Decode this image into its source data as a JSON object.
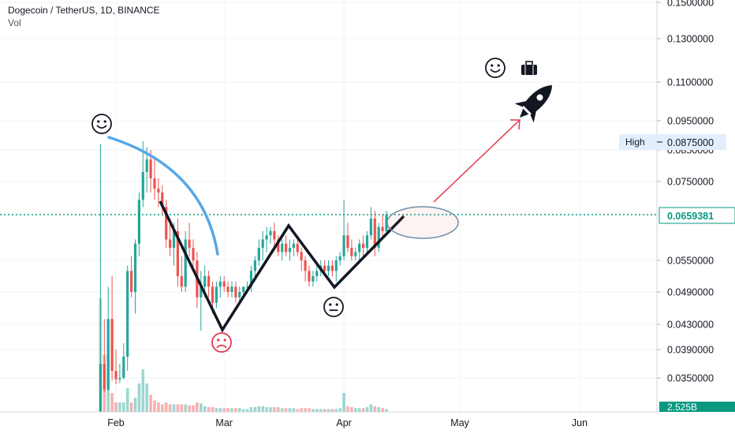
{
  "header": {
    "title": "Dogecoin / TetherUS, 1D, BINANCE",
    "volume_label": "Vol"
  },
  "chart_data": {
    "type": "candlestick",
    "y_ticks": [
      "0.1500000",
      "0.1300000",
      "0.1100000",
      "0.0950000",
      "0.0850000",
      "0.0750000",
      "0.0550000",
      "0.0490000",
      "0.0430000",
      "0.0390000",
      "0.0350000"
    ],
    "x_ticks": [
      "Feb",
      "Mar",
      "Apr",
      "May",
      "Jun"
    ],
    "high_label": "High",
    "high_value": "0.0875000",
    "last_price": "0.0659381",
    "volume_value": "2.525B",
    "colors": {
      "up": "#26a69a",
      "down": "#ef5350",
      "last_price": "#089981",
      "arc": "#56a7e6",
      "zigzag": "#131722",
      "arrow": "#e5364d",
      "ellipse": "#6e8fa8"
    },
    "annotations": [
      "smile-emoji",
      "frown-emoji",
      "neutral-emoji",
      "smile-emoji",
      "briefcase-icon",
      "rocket-icon"
    ],
    "candles": [
      {
        "date": "Jan 28",
        "o": 0.0085,
        "h": 0.087,
        "l": 0.0083,
        "c": 0.037,
        "v": 1.2
      },
      {
        "date": "Jan 29",
        "o": 0.037,
        "h": 0.044,
        "l": 0.024,
        "c": 0.026,
        "v": 0.6
      },
      {
        "date": "Jan 30",
        "o": 0.026,
        "h": 0.05,
        "l": 0.025,
        "c": 0.044,
        "v": 0.6
      },
      {
        "date": "Jan 31",
        "o": 0.044,
        "h": 0.052,
        "l": 0.033,
        "c": 0.036,
        "v": 0.2
      },
      {
        "date": "Feb 1",
        "o": 0.036,
        "h": 0.039,
        "l": 0.03,
        "c": 0.034,
        "v": 0.1
      },
      {
        "date": "Feb 2",
        "o": 0.034,
        "h": 0.037,
        "l": 0.031,
        "c": 0.035,
        "v": 0.1
      },
      {
        "date": "Feb 3",
        "o": 0.035,
        "h": 0.04,
        "l": 0.034,
        "c": 0.038,
        "v": 0.1
      },
      {
        "date": "Feb 4",
        "o": 0.038,
        "h": 0.054,
        "l": 0.036,
        "c": 0.053,
        "v": 0.25
      },
      {
        "date": "Feb 5",
        "o": 0.053,
        "h": 0.056,
        "l": 0.048,
        "c": 0.049,
        "v": 0.1
      },
      {
        "date": "Feb 6",
        "o": 0.049,
        "h": 0.06,
        "l": 0.045,
        "c": 0.059,
        "v": 0.15
      },
      {
        "date": "Feb 7",
        "o": 0.059,
        "h": 0.072,
        "l": 0.056,
        "c": 0.07,
        "v": 0.3
      },
      {
        "date": "Feb 8",
        "o": 0.07,
        "h": 0.088,
        "l": 0.068,
        "c": 0.078,
        "v": 0.45
      },
      {
        "date": "Feb 9",
        "o": 0.078,
        "h": 0.086,
        "l": 0.072,
        "c": 0.082,
        "v": 0.3
      },
      {
        "date": "Feb 10",
        "o": 0.082,
        "h": 0.085,
        "l": 0.072,
        "c": 0.076,
        "v": 0.18
      },
      {
        "date": "Feb 11",
        "o": 0.076,
        "h": 0.082,
        "l": 0.07,
        "c": 0.073,
        "v": 0.12
      },
      {
        "date": "Feb 12",
        "o": 0.073,
        "h": 0.076,
        "l": 0.068,
        "c": 0.072,
        "v": 0.1
      },
      {
        "date": "Feb 13",
        "o": 0.072,
        "h": 0.074,
        "l": 0.066,
        "c": 0.068,
        "v": 0.08
      },
      {
        "date": "Feb 14",
        "o": 0.068,
        "h": 0.07,
        "l": 0.058,
        "c": 0.06,
        "v": 0.1
      },
      {
        "date": "Feb 15",
        "o": 0.06,
        "h": 0.065,
        "l": 0.056,
        "c": 0.058,
        "v": 0.08
      },
      {
        "date": "Feb 16",
        "o": 0.058,
        "h": 0.064,
        "l": 0.054,
        "c": 0.062,
        "v": 0.08
      },
      {
        "date": "Feb 17",
        "o": 0.062,
        "h": 0.065,
        "l": 0.05,
        "c": 0.052,
        "v": 0.08
      },
      {
        "date": "Feb 18",
        "o": 0.052,
        "h": 0.056,
        "l": 0.049,
        "c": 0.05,
        "v": 0.08
      },
      {
        "date": "Feb 19",
        "o": 0.05,
        "h": 0.062,
        "l": 0.049,
        "c": 0.06,
        "v": 0.08
      },
      {
        "date": "Feb 20",
        "o": 0.06,
        "h": 0.064,
        "l": 0.056,
        "c": 0.058,
        "v": 0.07
      },
      {
        "date": "Feb 21",
        "o": 0.058,
        "h": 0.06,
        "l": 0.053,
        "c": 0.055,
        "v": 0.07
      },
      {
        "date": "Feb 22",
        "o": 0.055,
        "h": 0.057,
        "l": 0.046,
        "c": 0.048,
        "v": 0.1
      },
      {
        "date": "Feb 23",
        "o": 0.048,
        "h": 0.053,
        "l": 0.042,
        "c": 0.05,
        "v": 0.09
      },
      {
        "date": "Feb 24",
        "o": 0.05,
        "h": 0.054,
        "l": 0.048,
        "c": 0.052,
        "v": 0.06
      },
      {
        "date": "Feb 25",
        "o": 0.052,
        "h": 0.053,
        "l": 0.048,
        "c": 0.05,
        "v": 0.05
      },
      {
        "date": "Feb 26",
        "o": 0.05,
        "h": 0.051,
        "l": 0.045,
        "c": 0.047,
        "v": 0.05
      },
      {
        "date": "Feb 27",
        "o": 0.047,
        "h": 0.051,
        "l": 0.046,
        "c": 0.05,
        "v": 0.04
      },
      {
        "date": "Feb 28",
        "o": 0.05,
        "h": 0.052,
        "l": 0.048,
        "c": 0.051,
        "v": 0.04
      },
      {
        "date": "Mar 1",
        "o": 0.051,
        "h": 0.052,
        "l": 0.049,
        "c": 0.05,
        "v": 0.04
      },
      {
        "date": "Mar 2",
        "o": 0.05,
        "h": 0.051,
        "l": 0.048,
        "c": 0.049,
        "v": 0.04
      },
      {
        "date": "Mar 3",
        "o": 0.049,
        "h": 0.051,
        "l": 0.048,
        "c": 0.05,
        "v": 0.04
      },
      {
        "date": "Mar 4",
        "o": 0.05,
        "h": 0.051,
        "l": 0.047,
        "c": 0.048,
        "v": 0.04
      },
      {
        "date": "Mar 5",
        "o": 0.048,
        "h": 0.05,
        "l": 0.047,
        "c": 0.049,
        "v": 0.04
      },
      {
        "date": "Mar 6",
        "o": 0.049,
        "h": 0.05,
        "l": 0.048,
        "c": 0.05,
        "v": 0.03
      },
      {
        "date": "Mar 7",
        "o": 0.05,
        "h": 0.051,
        "l": 0.049,
        "c": 0.05,
        "v": 0.03
      },
      {
        "date": "Mar 8",
        "o": 0.05,
        "h": 0.054,
        "l": 0.049,
        "c": 0.053,
        "v": 0.05
      },
      {
        "date": "Mar 9",
        "o": 0.053,
        "h": 0.056,
        "l": 0.051,
        "c": 0.055,
        "v": 0.05
      },
      {
        "date": "Mar 10",
        "o": 0.055,
        "h": 0.06,
        "l": 0.054,
        "c": 0.058,
        "v": 0.06
      },
      {
        "date": "Mar 11",
        "o": 0.058,
        "h": 0.062,
        "l": 0.055,
        "c": 0.06,
        "v": 0.06
      },
      {
        "date": "Mar 12",
        "o": 0.06,
        "h": 0.063,
        "l": 0.057,
        "c": 0.061,
        "v": 0.05
      },
      {
        "date": "Mar 13",
        "o": 0.061,
        "h": 0.063,
        "l": 0.059,
        "c": 0.062,
        "v": 0.05
      },
      {
        "date": "Mar 14",
        "o": 0.062,
        "h": 0.064,
        "l": 0.058,
        "c": 0.06,
        "v": 0.05
      },
      {
        "date": "Mar 15",
        "o": 0.06,
        "h": 0.061,
        "l": 0.056,
        "c": 0.057,
        "v": 0.05
      },
      {
        "date": "Mar 16",
        "o": 0.057,
        "h": 0.06,
        "l": 0.055,
        "c": 0.059,
        "v": 0.04
      },
      {
        "date": "Mar 17",
        "o": 0.059,
        "h": 0.061,
        "l": 0.056,
        "c": 0.057,
        "v": 0.04
      },
      {
        "date": "Mar 18",
        "o": 0.057,
        "h": 0.06,
        "l": 0.055,
        "c": 0.058,
        "v": 0.04
      },
      {
        "date": "Mar 19",
        "o": 0.058,
        "h": 0.06,
        "l": 0.056,
        "c": 0.059,
        "v": 0.04
      },
      {
        "date": "Mar 20",
        "o": 0.059,
        "h": 0.06,
        "l": 0.056,
        "c": 0.057,
        "v": 0.03
      },
      {
        "date": "Mar 21",
        "o": 0.057,
        "h": 0.058,
        "l": 0.053,
        "c": 0.055,
        "v": 0.04
      },
      {
        "date": "Mar 22",
        "o": 0.055,
        "h": 0.056,
        "l": 0.051,
        "c": 0.053,
        "v": 0.04
      },
      {
        "date": "Mar 23",
        "o": 0.053,
        "h": 0.054,
        "l": 0.05,
        "c": 0.051,
        "v": 0.04
      },
      {
        "date": "Mar 24",
        "o": 0.051,
        "h": 0.053,
        "l": 0.05,
        "c": 0.052,
        "v": 0.03
      },
      {
        "date": "Mar 25",
        "o": 0.052,
        "h": 0.054,
        "l": 0.051,
        "c": 0.053,
        "v": 0.03
      },
      {
        "date": "Mar 26",
        "o": 0.053,
        "h": 0.055,
        "l": 0.052,
        "c": 0.054,
        "v": 0.03
      },
      {
        "date": "Mar 27",
        "o": 0.054,
        "h": 0.055,
        "l": 0.052,
        "c": 0.053,
        "v": 0.03
      },
      {
        "date": "Mar 28",
        "o": 0.053,
        "h": 0.055,
        "l": 0.052,
        "c": 0.054,
        "v": 0.03
      },
      {
        "date": "Mar 29",
        "o": 0.054,
        "h": 0.055,
        "l": 0.052,
        "c": 0.053,
        "v": 0.03
      },
      {
        "date": "Mar 30",
        "o": 0.053,
        "h": 0.056,
        "l": 0.051,
        "c": 0.055,
        "v": 0.03
      },
      {
        "date": "Mar 31",
        "o": 0.055,
        "h": 0.057,
        "l": 0.054,
        "c": 0.056,
        "v": 0.04
      },
      {
        "date": "Apr 1",
        "o": 0.056,
        "h": 0.07,
        "l": 0.055,
        "c": 0.061,
        "v": 0.2
      },
      {
        "date": "Apr 2",
        "o": 0.061,
        "h": 0.064,
        "l": 0.057,
        "c": 0.058,
        "v": 0.06
      },
      {
        "date": "Apr 3",
        "o": 0.058,
        "h": 0.06,
        "l": 0.055,
        "c": 0.056,
        "v": 0.05
      },
      {
        "date": "Apr 4",
        "o": 0.056,
        "h": 0.058,
        "l": 0.055,
        "c": 0.057,
        "v": 0.04
      },
      {
        "date": "Apr 5",
        "o": 0.057,
        "h": 0.06,
        "l": 0.055,
        "c": 0.059,
        "v": 0.04
      },
      {
        "date": "Apr 6",
        "o": 0.059,
        "h": 0.061,
        "l": 0.056,
        "c": 0.058,
        "v": 0.04
      },
      {
        "date": "Apr 7",
        "o": 0.058,
        "h": 0.062,
        "l": 0.057,
        "c": 0.061,
        "v": 0.05
      },
      {
        "date": "Apr 8",
        "o": 0.061,
        "h": 0.068,
        "l": 0.06,
        "c": 0.065,
        "v": 0.08
      },
      {
        "date": "Apr 9",
        "o": 0.065,
        "h": 0.067,
        "l": 0.056,
        "c": 0.058,
        "v": 0.06
      },
      {
        "date": "Apr 10",
        "o": 0.058,
        "h": 0.064,
        "l": 0.057,
        "c": 0.063,
        "v": 0.05
      },
      {
        "date": "Apr 11",
        "o": 0.063,
        "h": 0.066,
        "l": 0.06,
        "c": 0.062,
        "v": 0.04
      },
      {
        "date": "Apr 12",
        "o": 0.062,
        "h": 0.067,
        "l": 0.061,
        "c": 0.0659,
        "v": 0.03
      }
    ]
  }
}
